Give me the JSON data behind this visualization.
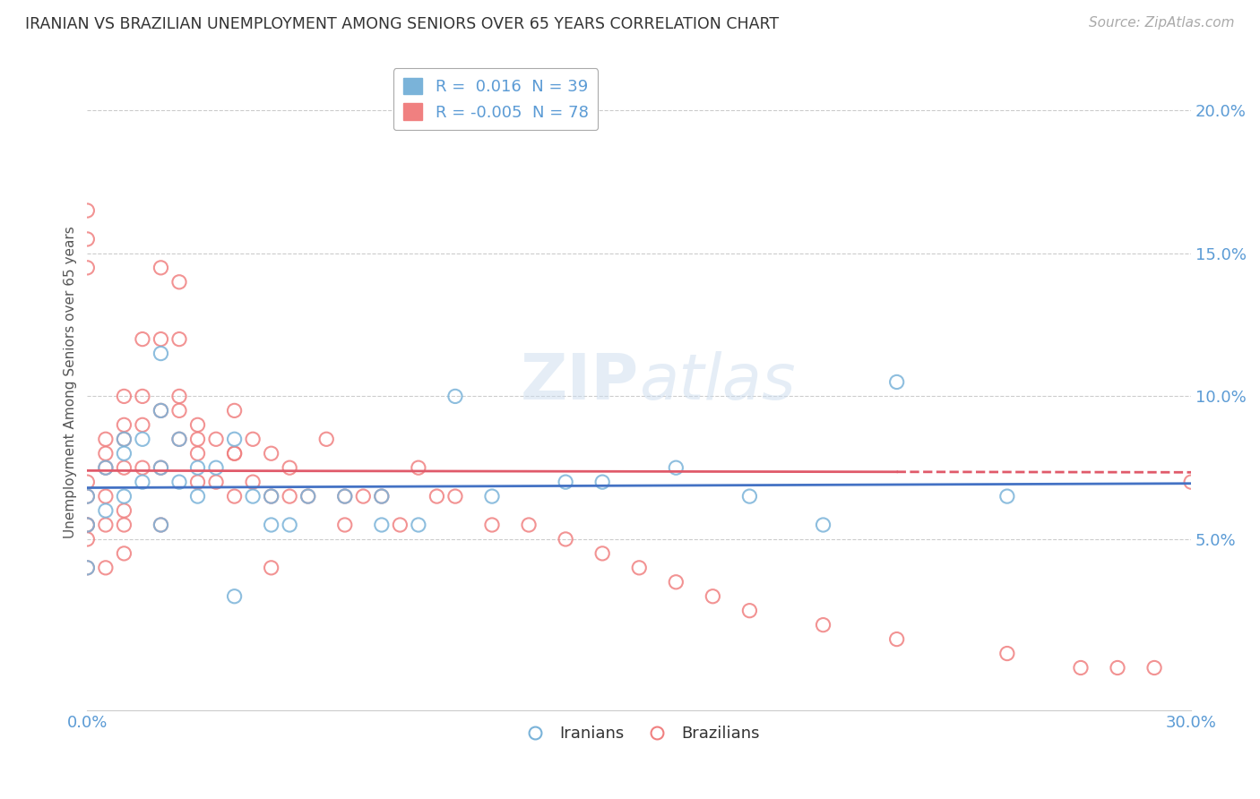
{
  "title": "IRANIAN VS BRAZILIAN UNEMPLOYMENT AMONG SENIORS OVER 65 YEARS CORRELATION CHART",
  "source": "Source: ZipAtlas.com",
  "ylabel": "Unemployment Among Seniors over 65 years",
  "xlim": [
    0,
    0.3
  ],
  "ylim": [
    -0.01,
    0.22
  ],
  "yticks": [
    0.05,
    0.1,
    0.15,
    0.2
  ],
  "ytick_labels": [
    "5.0%",
    "10.0%",
    "15.0%",
    "20.0%"
  ],
  "xticks": [
    0.0,
    0.05,
    0.1,
    0.15,
    0.2,
    0.25,
    0.3
  ],
  "xtick_labels": [
    "0.0%",
    "",
    "",
    "",
    "",
    "",
    "30.0%"
  ],
  "iranian_R": 0.016,
  "iranian_N": 39,
  "brazilian_R": -0.005,
  "brazilian_N": 78,
  "color_iranian": "#7ab3d9",
  "color_brazilian": "#f08080",
  "color_text_blue": "#5b9bd5",
  "background_color": "#ffffff",
  "watermark": "ZIPatlas",
  "iranians_x": [
    0.0,
    0.0,
    0.0,
    0.005,
    0.005,
    0.01,
    0.01,
    0.01,
    0.015,
    0.015,
    0.02,
    0.02,
    0.02,
    0.02,
    0.025,
    0.025,
    0.03,
    0.03,
    0.035,
    0.04,
    0.04,
    0.045,
    0.05,
    0.05,
    0.055,
    0.06,
    0.07,
    0.08,
    0.08,
    0.09,
    0.1,
    0.11,
    0.13,
    0.14,
    0.16,
    0.18,
    0.2,
    0.22,
    0.25
  ],
  "iranians_y": [
    0.065,
    0.055,
    0.04,
    0.075,
    0.06,
    0.085,
    0.08,
    0.065,
    0.085,
    0.07,
    0.115,
    0.095,
    0.075,
    0.055,
    0.085,
    0.07,
    0.075,
    0.065,
    0.075,
    0.085,
    0.03,
    0.065,
    0.065,
    0.055,
    0.055,
    0.065,
    0.065,
    0.065,
    0.055,
    0.055,
    0.1,
    0.065,
    0.07,
    0.07,
    0.075,
    0.065,
    0.055,
    0.105,
    0.065
  ],
  "brazilians_x": [
    0.0,
    0.0,
    0.0,
    0.0,
    0.0,
    0.005,
    0.005,
    0.005,
    0.005,
    0.005,
    0.01,
    0.01,
    0.01,
    0.01,
    0.01,
    0.015,
    0.015,
    0.015,
    0.015,
    0.02,
    0.02,
    0.02,
    0.02,
    0.025,
    0.025,
    0.025,
    0.025,
    0.03,
    0.03,
    0.03,
    0.035,
    0.035,
    0.04,
    0.04,
    0.04,
    0.045,
    0.045,
    0.05,
    0.05,
    0.055,
    0.055,
    0.06,
    0.065,
    0.07,
    0.07,
    0.075,
    0.08,
    0.085,
    0.09,
    0.095,
    0.1,
    0.11,
    0.12,
    0.13,
    0.14,
    0.15,
    0.16,
    0.17,
    0.18,
    0.2,
    0.22,
    0.25,
    0.27,
    0.28,
    0.29,
    0.3,
    0.0,
    0.0,
    0.0,
    0.0,
    0.005,
    0.01,
    0.01,
    0.02,
    0.025,
    0.03,
    0.04,
    0.05
  ],
  "brazilians_y": [
    0.07,
    0.065,
    0.055,
    0.05,
    0.04,
    0.085,
    0.075,
    0.065,
    0.055,
    0.04,
    0.1,
    0.09,
    0.075,
    0.06,
    0.045,
    0.12,
    0.1,
    0.09,
    0.075,
    0.145,
    0.12,
    0.095,
    0.075,
    0.14,
    0.12,
    0.1,
    0.085,
    0.09,
    0.08,
    0.07,
    0.085,
    0.07,
    0.095,
    0.08,
    0.065,
    0.085,
    0.07,
    0.08,
    0.065,
    0.075,
    0.065,
    0.065,
    0.085,
    0.065,
    0.055,
    0.065,
    0.065,
    0.055,
    0.075,
    0.065,
    0.065,
    0.055,
    0.055,
    0.05,
    0.045,
    0.04,
    0.035,
    0.03,
    0.025,
    0.02,
    0.015,
    0.01,
    0.005,
    0.005,
    0.005,
    0.07,
    0.165,
    0.155,
    0.145,
    0.055,
    0.08,
    0.085,
    0.055,
    0.055,
    0.095,
    0.085,
    0.08,
    0.04
  ]
}
